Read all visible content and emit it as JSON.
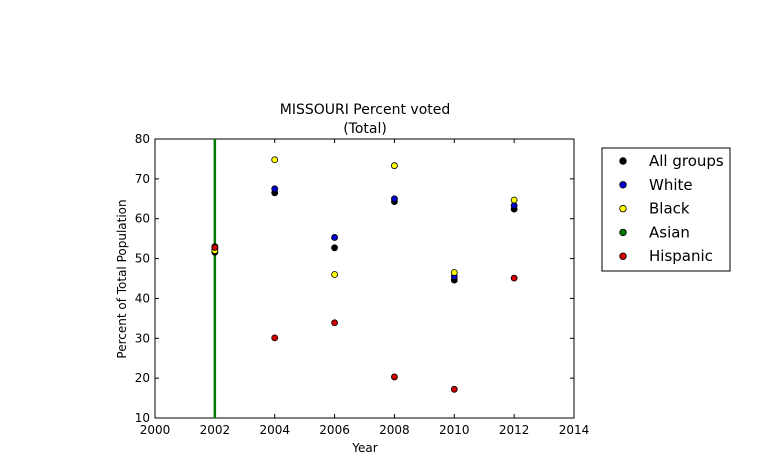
{
  "chart_data": {
    "type": "scatter",
    "title_line1": "MISSOURI Percent voted",
    "title_line2": "(Total)",
    "xlabel": "Year",
    "ylabel": "Percent of Total Population",
    "xlim": [
      2000,
      2014
    ],
    "ylim": [
      10,
      80
    ],
    "xticks": [
      "2000",
      "2002",
      "2004",
      "2006",
      "2008",
      "2010",
      "2012",
      "2014"
    ],
    "yticks": [
      "10",
      "20",
      "30",
      "40",
      "50",
      "60",
      "70",
      "80"
    ],
    "legend_position": "right, outside plot area",
    "series": [
      {
        "name": "All groups",
        "color": "#000000",
        "points": [
          [
            2002,
            51.6
          ],
          [
            2004,
            66.5
          ],
          [
            2006,
            52.7
          ],
          [
            2008,
            64.3
          ],
          [
            2010,
            44.6
          ],
          [
            2012,
            62.4
          ]
        ]
      },
      {
        "name": "White",
        "color": "#0000cc",
        "points": [
          [
            2002,
            52.5
          ],
          [
            2004,
            67.5
          ],
          [
            2006,
            55.3
          ],
          [
            2008,
            65.0
          ],
          [
            2010,
            45.5
          ],
          [
            2012,
            63.3
          ]
        ]
      },
      {
        "name": "Black",
        "color": "#ffff00",
        "points": [
          [
            2002,
            52.0
          ],
          [
            2004,
            74.8
          ],
          [
            2006,
            46.0
          ],
          [
            2008,
            73.3
          ],
          [
            2010,
            46.5
          ],
          [
            2012,
            64.7
          ]
        ]
      },
      {
        "name": "Asian",
        "color": "#007700",
        "points": [
          [
            2002,
            53.0
          ]
        ]
      },
      {
        "name": "Hispanic",
        "color": "#cc0000",
        "points": [
          [
            2002,
            52.8
          ],
          [
            2004,
            30.1
          ],
          [
            2006,
            33.9
          ],
          [
            2008,
            20.3
          ],
          [
            2010,
            17.2
          ],
          [
            2012,
            45.1
          ]
        ]
      }
    ],
    "vertical_line": {
      "x": 2002,
      "color": "#007700"
    }
  }
}
